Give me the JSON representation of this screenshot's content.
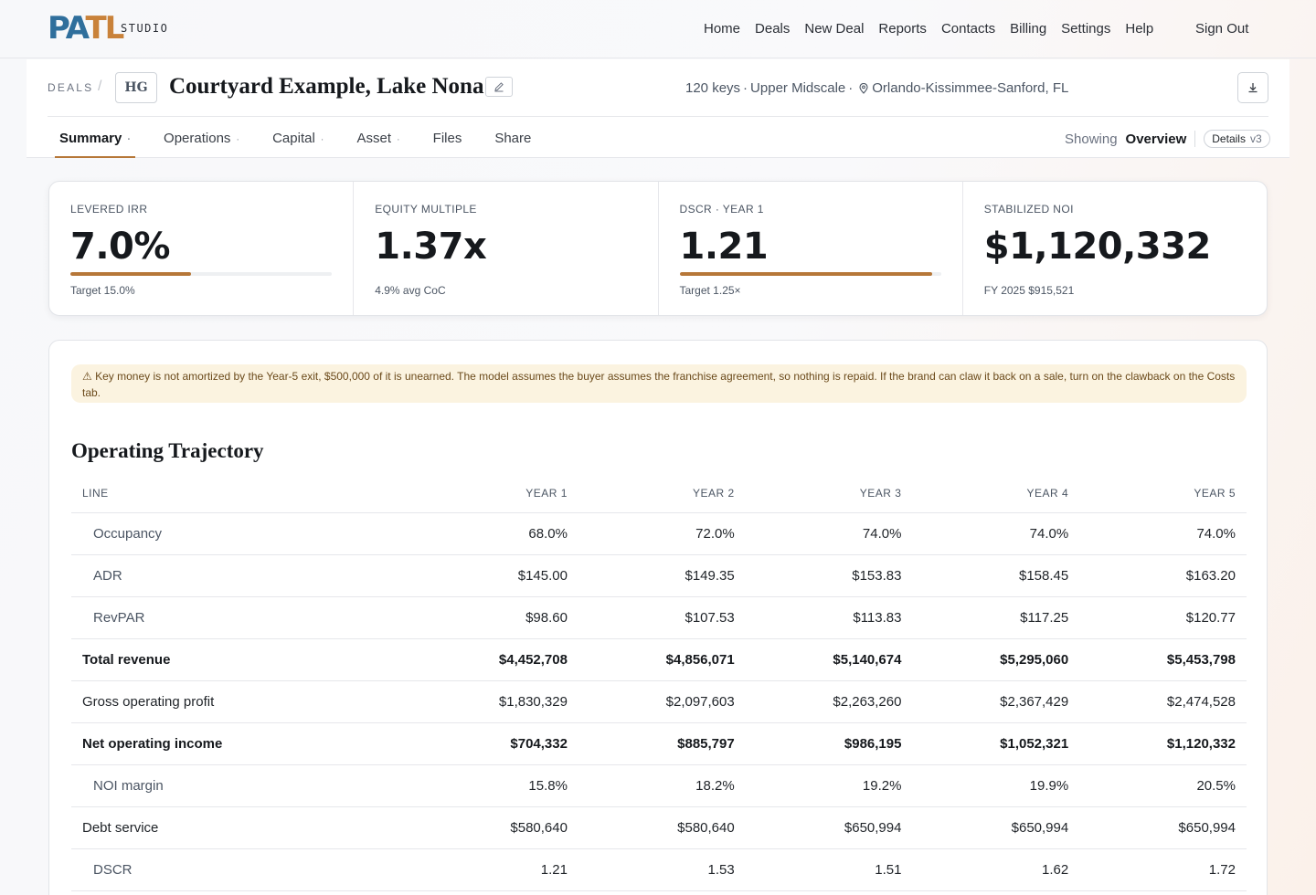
{
  "app": {
    "logo_text": "PATL",
    "logo_suffix": "STUDIO",
    "nav": [
      "Home",
      "Deals",
      "New Deal",
      "Reports",
      "Contacts",
      "Billing",
      "Settings",
      "Help"
    ],
    "sign_out": "Sign Out",
    "colors": {
      "logo_blue": "#2f6f9c",
      "logo_orange": "#c9823a",
      "accent": "#b67738"
    }
  },
  "deal": {
    "breadcrumb": "DEALS",
    "breadcrumb_sep": "/",
    "badge": "HG",
    "title": "Courtyard Example, Lake Nona",
    "meta_keys": "120 keys",
    "meta_class": "Upper Midscale",
    "meta_location": "Orlando-Kissimmee-Sanford, FL",
    "meta_sep": "·",
    "icons": {
      "edit": "pencil-icon",
      "download": "download-icon",
      "location": "map-pin-icon"
    }
  },
  "tabs": [
    {
      "label": "Summary",
      "has_menu": true,
      "active": true
    },
    {
      "label": "Operations",
      "has_menu": true
    },
    {
      "label": "Capital",
      "has_menu": true
    },
    {
      "label": "Asset",
      "has_menu": true
    },
    {
      "label": "Files",
      "has_menu": false
    },
    {
      "label": "Share",
      "has_menu": false
    }
  ],
  "tab_menu_marker": "·",
  "view": {
    "showing_label": "Showing",
    "current": "Overview",
    "details_label": "Details",
    "version": "v3"
  },
  "kpis": [
    {
      "label": "LEVERED IRR",
      "value": "7.0%",
      "sub": "Target 15.0%",
      "progress": 0.46
    },
    {
      "label": "EQUITY MULTIPLE",
      "value": "1.37x",
      "sub": "4.9% avg CoC"
    },
    {
      "label": "DSCR · YEAR 1",
      "value": "1.21",
      "sub": "Target 1.25×",
      "progress": 0.968
    },
    {
      "label": "STABILIZED NOI",
      "value": "$1,120,332",
      "sub": "FY 2025 $915,521"
    }
  ],
  "alert": {
    "icon": "⚠",
    "text": "Key money is not amortized by the Year-5 exit, $500,000 of it is unearned. The model assumes the buyer assumes the franchise agreement, so nothing is repaid. If the brand can claw it back on a sale, turn on the clawback on the Costs tab."
  },
  "trajectory": {
    "title": "Operating Trajectory",
    "columns": [
      "LINE",
      "YEAR 1",
      "YEAR 2",
      "YEAR 3",
      "YEAR 4",
      "YEAR 5"
    ],
    "rows": [
      {
        "label": "Occupancy",
        "style": "sub",
        "values": [
          "68.0%",
          "72.0%",
          "74.0%",
          "74.0%",
          "74.0%"
        ]
      },
      {
        "label": "ADR",
        "style": "sub",
        "values": [
          "$145.00",
          "$149.35",
          "$153.83",
          "$158.45",
          "$163.20"
        ]
      },
      {
        "label": "RevPAR",
        "style": "sub",
        "values": [
          "$98.60",
          "$107.53",
          "$113.83",
          "$117.25",
          "$120.77"
        ]
      },
      {
        "label": "Total revenue",
        "style": "bold",
        "values": [
          "$4,452,708",
          "$4,856,071",
          "$5,140,674",
          "$5,295,060",
          "$5,453,798"
        ]
      },
      {
        "label": "Gross operating profit",
        "style": "normal",
        "values": [
          "$1,830,329",
          "$2,097,603",
          "$2,263,260",
          "$2,367,429",
          "$2,474,528"
        ]
      },
      {
        "label": "Net operating income",
        "style": "bold",
        "values": [
          "$704,332",
          "$885,797",
          "$986,195",
          "$1,052,321",
          "$1,120,332"
        ]
      },
      {
        "label": "NOI margin",
        "style": "sub",
        "values": [
          "15.8%",
          "18.2%",
          "19.2%",
          "19.9%",
          "20.5%"
        ]
      },
      {
        "label": "Debt service",
        "style": "normal",
        "values": [
          "$580,640",
          "$580,640",
          "$650,994",
          "$650,994",
          "$650,994"
        ]
      },
      {
        "label": "DSCR",
        "style": "sub",
        "values": [
          "1.21",
          "1.53",
          "1.51",
          "1.62",
          "1.72"
        ]
      }
    ]
  }
}
